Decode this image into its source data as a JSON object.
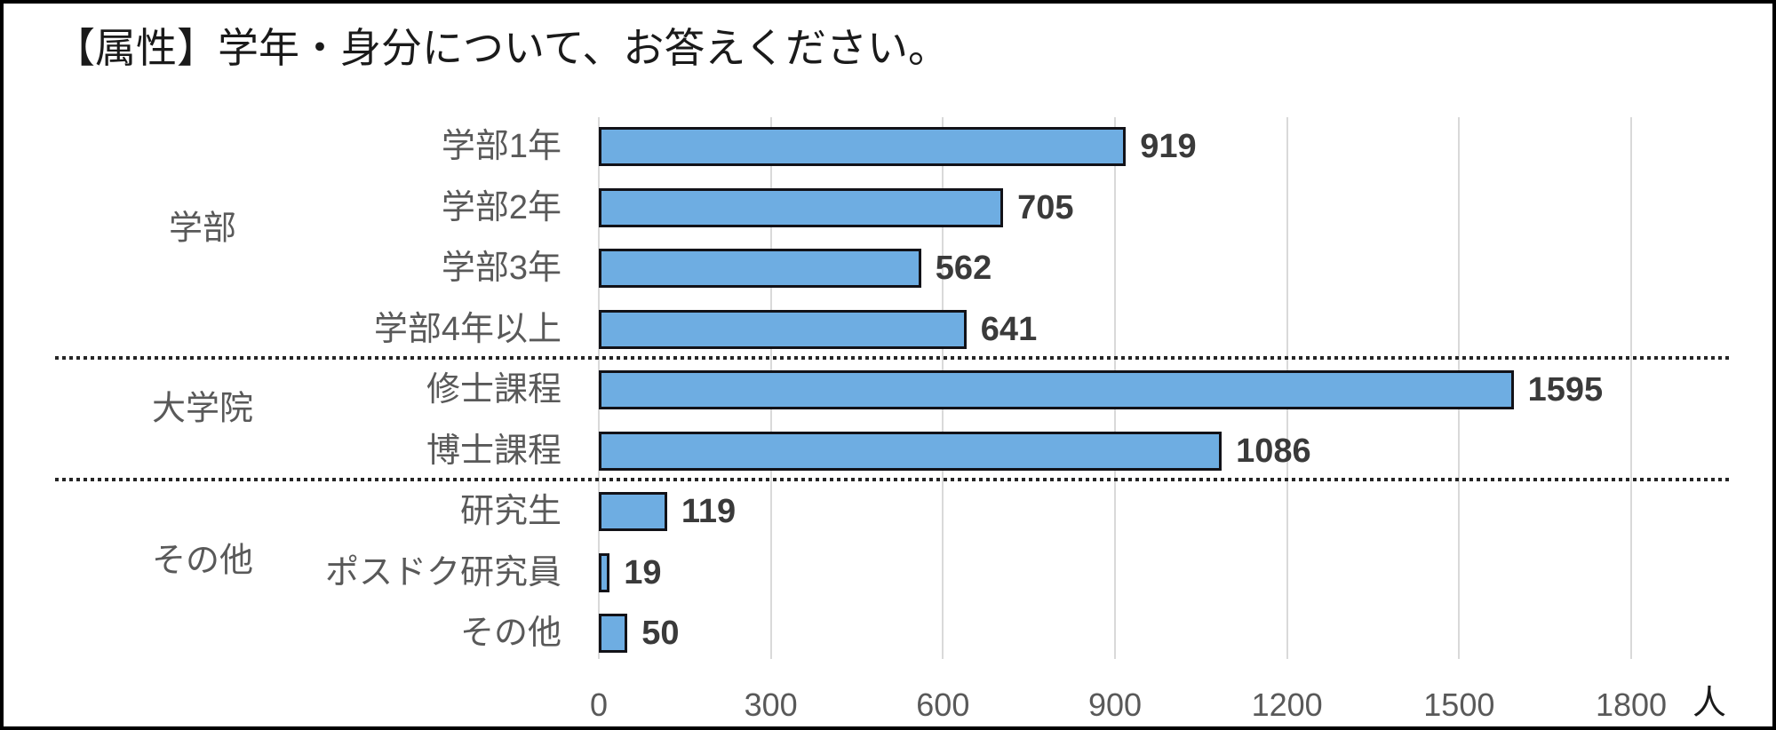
{
  "title": "【属性】学年・身分について、お答えください。",
  "chart_data": {
    "type": "bar",
    "orientation": "horizontal",
    "title": "【属性】学年・身分について、お答えください。",
    "unit": "人",
    "xlim": [
      0,
      1800
    ],
    "x_ticks": [
      0,
      300,
      600,
      900,
      1200,
      1500,
      1800
    ],
    "grid": true,
    "value_labels": true,
    "legend": "none",
    "bar_color": "#6EADE2",
    "bar_border_color": "#121218",
    "gridline_color": "#d9d9d9",
    "separator_color": "#262626",
    "groups": [
      {
        "label": "学部",
        "rows": [
          {
            "label": "学部1年",
            "value": 919
          },
          {
            "label": "学部2年",
            "value": 705
          },
          {
            "label": "学部3年",
            "value": 562
          },
          {
            "label": "学部4年以上",
            "value": 641
          }
        ]
      },
      {
        "label": "大学院",
        "rows": [
          {
            "label": "修士課程",
            "value": 1595
          },
          {
            "label": "博士課程",
            "value": 1086
          }
        ]
      },
      {
        "label": "その他",
        "rows": [
          {
            "label": "研究生",
            "value": 119
          },
          {
            "label": "ポスドク研究員",
            "value": 19
          },
          {
            "label": "その他",
            "value": 50
          }
        ]
      }
    ]
  }
}
